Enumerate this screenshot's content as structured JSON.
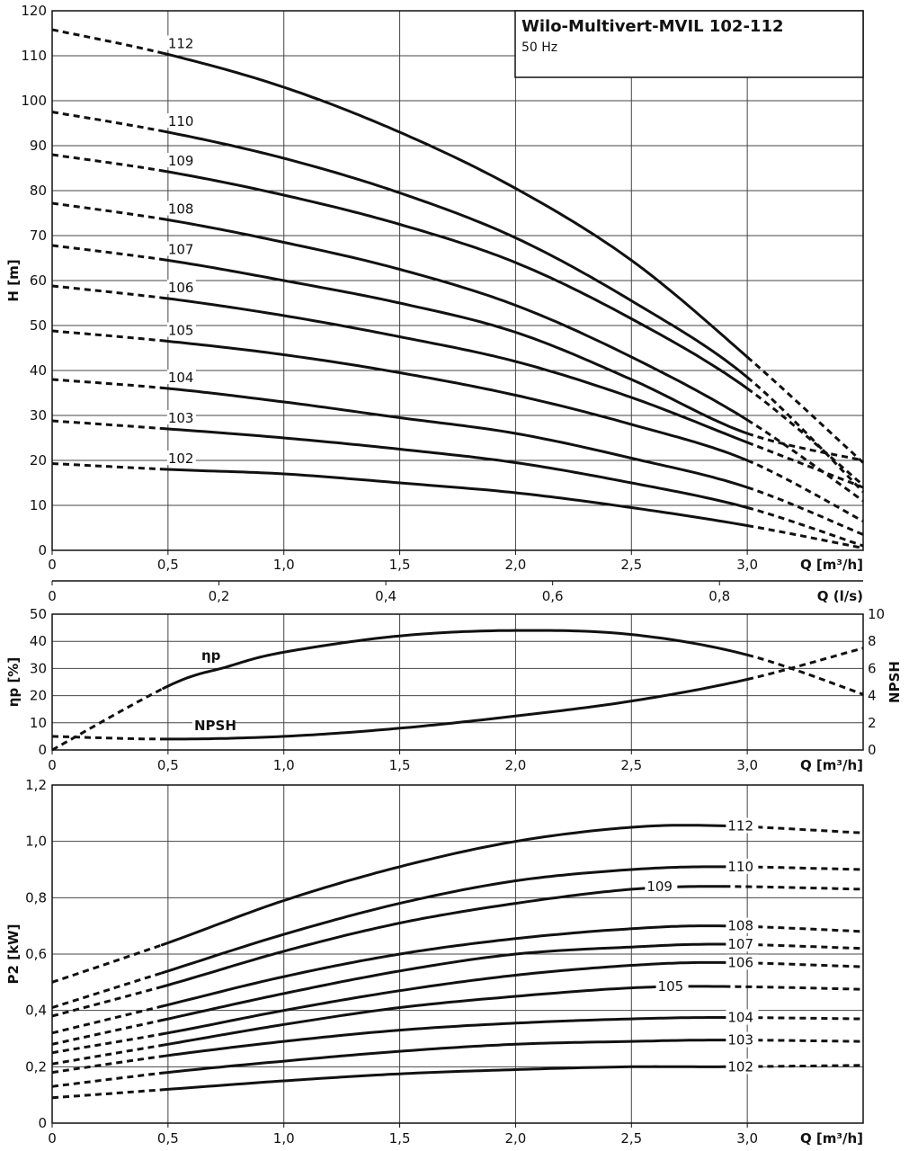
{
  "title": "Wilo-Multivert-MVIL 102-112",
  "subtitle": "50 Hz",
  "chart_data": [
    {
      "type": "line",
      "ylabel": "H [m]",
      "xlabel": "Q [m³/h]",
      "xlim": [
        0,
        3.5
      ],
      "ylim": [
        0,
        120
      ],
      "x_ticks": [
        "0",
        "0,5",
        "1,0",
        "1,5",
        "2,0",
        "2,5",
        "3,0"
      ],
      "y_ticks": [
        "0",
        "10",
        "20",
        "30",
        "40",
        "50",
        "60",
        "70",
        "80",
        "90",
        "100",
        "110",
        "120"
      ],
      "secondary_x": {
        "label": "Q (l/s)",
        "ticks": [
          "0",
          "0,2",
          "0,4",
          "0,6",
          "0,8"
        ],
        "values": [
          0,
          0.2,
          0.4,
          0.6,
          0.8
        ]
      },
      "solid_range": [
        0.5,
        3.0
      ],
      "x": [
        0,
        0.5,
        1.0,
        1.5,
        2.0,
        2.5,
        3.0,
        3.5
      ],
      "series": [
        {
          "name": "112",
          "values": [
            115.8,
            110.3,
            103.0,
            93.0,
            80.5,
            64.5,
            43.0,
            19.5
          ]
        },
        {
          "name": "110",
          "values": [
            97.5,
            93.0,
            87.2,
            79.5,
            69.5,
            55.5,
            38.5,
            13.0
          ]
        },
        {
          "name": "109",
          "values": [
            88.0,
            84.2,
            79.0,
            72.5,
            64.0,
            51.5,
            36.0,
            14.5
          ]
        },
        {
          "name": "108",
          "values": [
            77.2,
            73.5,
            68.5,
            62.5,
            54.5,
            43.0,
            29.0,
            11.0
          ]
        },
        {
          "name": "107",
          "values": [
            67.8,
            64.5,
            60.0,
            55.0,
            48.5,
            38.0,
            26.0,
            20.0
          ]
        },
        {
          "name": "106",
          "values": [
            58.8,
            56.0,
            52.2,
            47.5,
            42.0,
            34.0,
            24.0,
            14.0
          ]
        },
        {
          "name": "105",
          "values": [
            48.8,
            46.5,
            43.5,
            39.5,
            34.5,
            28.0,
            20.0,
            6.5
          ]
        },
        {
          "name": "104",
          "values": [
            38.0,
            36.0,
            33.0,
            29.5,
            26.0,
            20.5,
            14.0,
            3.5
          ]
        },
        {
          "name": "103",
          "values": [
            28.8,
            27.0,
            25.0,
            22.5,
            19.5,
            15.0,
            9.5,
            1.0
          ]
        },
        {
          "name": "102",
          "values": [
            19.3,
            18.0,
            17.0,
            15.0,
            12.8,
            9.5,
            5.5,
            0.5
          ]
        }
      ]
    },
    {
      "type": "line",
      "ylabel": "ηp [%]",
      "y2label": "NPSH",
      "xlabel": "Q [m³/h]",
      "xlim": [
        0,
        3.5
      ],
      "ylim": [
        0,
        50
      ],
      "y2lim": [
        0,
        10
      ],
      "x_ticks": [
        "0",
        "0,5",
        "1,0",
        "1,5",
        "2,0",
        "2,5",
        "3,0"
      ],
      "y_ticks": [
        "0",
        "10",
        "20",
        "30",
        "40",
        "50"
      ],
      "y2_ticks": [
        "0",
        "2",
        "4",
        "6",
        "8",
        "10"
      ],
      "solid_range": [
        0.5,
        3.0
      ],
      "series": [
        {
          "name": "ηp",
          "axis": "left",
          "x": [
            0,
            0.5,
            0.75,
            1.0,
            1.5,
            2.0,
            2.5,
            3.0,
            3.5
          ],
          "values": [
            0,
            23.5,
            30.5,
            36.0,
            42.0,
            44.0,
            42.5,
            35.0,
            20.5
          ]
        },
        {
          "name": "NPSH",
          "axis": "right",
          "x": [
            0,
            0.5,
            1.0,
            1.5,
            2.0,
            2.5,
            3.0,
            3.5
          ],
          "values": [
            1.0,
            0.8,
            1.0,
            1.6,
            2.5,
            3.6,
            5.2,
            7.5
          ]
        }
      ]
    },
    {
      "type": "line",
      "ylabel": "P2 [kW]",
      "xlabel": "Q [m³/h]",
      "xlim": [
        0,
        3.5
      ],
      "ylim": [
        0,
        1.2
      ],
      "x_ticks": [
        "0",
        "0,5",
        "1,0",
        "1,5",
        "2,0",
        "2,5",
        "3,0"
      ],
      "y_ticks": [
        "0",
        "0,2",
        "0,4",
        "0,6",
        "0,8",
        "1,0",
        "1,2"
      ],
      "solid_range": [
        0.5,
        2.9
      ],
      "x": [
        0,
        0.5,
        1.0,
        1.5,
        2.0,
        2.5,
        2.9,
        3.5
      ],
      "series": [
        {
          "name": "112",
          "values": [
            0.5,
            0.64,
            0.79,
            0.91,
            1.0,
            1.05,
            1.055,
            1.03
          ]
        },
        {
          "name": "110",
          "values": [
            0.41,
            0.54,
            0.67,
            0.78,
            0.86,
            0.9,
            0.91,
            0.9
          ]
        },
        {
          "name": "109",
          "values": [
            0.38,
            0.49,
            0.61,
            0.71,
            0.78,
            0.83,
            0.84,
            0.83
          ]
        },
        {
          "name": "108",
          "values": [
            0.32,
            0.42,
            0.52,
            0.6,
            0.655,
            0.69,
            0.7,
            0.68
          ]
        },
        {
          "name": "107",
          "values": [
            0.28,
            0.37,
            0.46,
            0.54,
            0.6,
            0.625,
            0.635,
            0.62
          ]
        },
        {
          "name": "106",
          "values": [
            0.25,
            0.32,
            0.4,
            0.47,
            0.525,
            0.56,
            0.57,
            0.555
          ]
        },
        {
          "name": "105",
          "values": [
            0.21,
            0.28,
            0.35,
            0.41,
            0.45,
            0.48,
            0.485,
            0.475
          ]
        },
        {
          "name": "104",
          "values": [
            0.18,
            0.24,
            0.29,
            0.33,
            0.355,
            0.37,
            0.375,
            0.37
          ]
        },
        {
          "name": "103",
          "values": [
            0.13,
            0.18,
            0.22,
            0.255,
            0.28,
            0.29,
            0.295,
            0.29
          ]
        },
        {
          "name": "102",
          "values": [
            0.09,
            0.12,
            0.15,
            0.175,
            0.19,
            0.2,
            0.2,
            0.205
          ]
        }
      ]
    }
  ],
  "colors": {
    "line": "#111111",
    "grid": "#444444"
  }
}
